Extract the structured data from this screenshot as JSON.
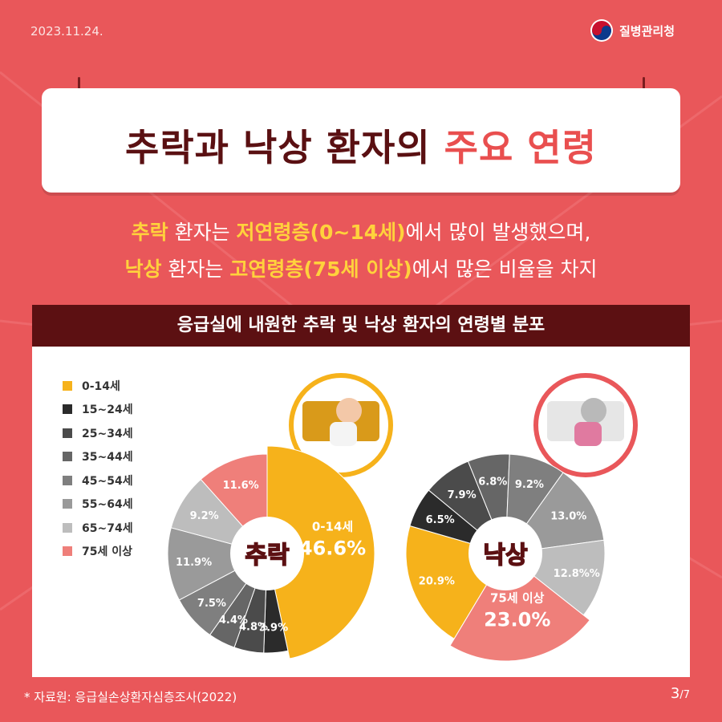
{
  "header": {
    "date": "2023.11.24.",
    "org": "질병관리청"
  },
  "title": {
    "part1": "추락과 낙상 환자의 ",
    "part2": "주요 연령"
  },
  "subtitle": {
    "line1": {
      "a": "추락",
      "b": " 환자는 ",
      "c": "저연령층(0~14세)",
      "d": "에서 많이 발생했으며,"
    },
    "line2": {
      "a": "낙상",
      "b": " 환자는 ",
      "c": "고연령층(75세 이상)",
      "d": "에서 많은 비율을 차지"
    }
  },
  "panel_title": "응급실에 내원한 추락 및 낙상 환자의 연령별 분포",
  "legend": [
    {
      "label": "0-14세",
      "color": "#f6b21b"
    },
    {
      "label": "15~24세",
      "color": "#2b2b2b"
    },
    {
      "label": "25~34세",
      "color": "#4b4b4b"
    },
    {
      "label": "35~44세",
      "color": "#666666"
    },
    {
      "label": "45~54세",
      "color": "#7f7f7f"
    },
    {
      "label": "55~64세",
      "color": "#9a9a9a"
    },
    {
      "label": "65~74세",
      "color": "#bdbdbd"
    },
    {
      "label": "75세 이상",
      "color": "#ef7f7a"
    }
  ],
  "chart_data": [
    {
      "type": "pie",
      "center_label": "추락",
      "categories": [
        "0-14세",
        "15~24세",
        "25~34세",
        "35~44세",
        "45~54세",
        "55~64세",
        "65~74세",
        "75세 이상"
      ],
      "values": [
        46.6,
        3.9,
        4.8,
        4.4,
        7.5,
        11.9,
        9.2,
        11.6
      ],
      "labels": [
        "46.6%",
        "3.9%",
        "4.8%",
        "4.4%",
        "7.5%",
        "11.9%",
        "9.2%",
        "11.6%"
      ],
      "highlight": {
        "index": 0,
        "caption": "0-14세"
      }
    },
    {
      "type": "pie",
      "center_label": "낙상",
      "categories": [
        "0-14세",
        "15~24세",
        "25~34세",
        "35~44세",
        "45~54세",
        "55~64세",
        "65~74세",
        "75세 이상"
      ],
      "values": [
        20.9,
        6.5,
        7.9,
        6.8,
        9.2,
        13.0,
        12.8,
        23.0
      ],
      "labels": [
        "20.9%",
        "6.5%",
        "7.9%",
        "6.8%",
        "9.2%",
        "13.0%",
        "12.8%%",
        "23.0%"
      ],
      "highlight": {
        "index": 7,
        "caption": "75세 이상"
      }
    }
  ],
  "footer": {
    "source": "* 자료원: 응급실손상환자심층조사(2022)",
    "page": "3",
    "total": "/7"
  }
}
